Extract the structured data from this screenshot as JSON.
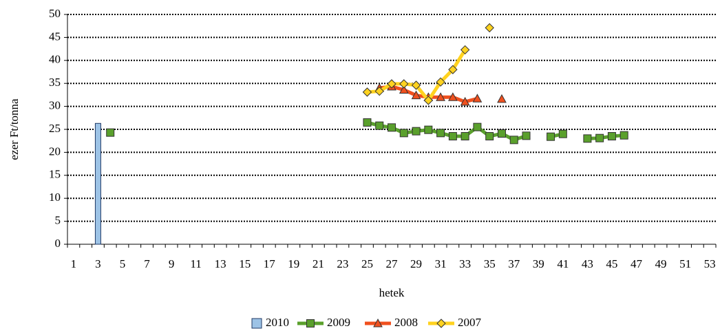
{
  "chart_data": {
    "type": "line",
    "x_label": "hetek",
    "y_label": "ezer Ft/tonna",
    "categories": [
      "1",
      null,
      "3",
      null,
      "5",
      null,
      "7",
      null,
      "9",
      null,
      "11",
      null,
      "13",
      null,
      "15",
      null,
      "17",
      null,
      "19",
      null,
      "21",
      null,
      "23",
      null,
      "25",
      null,
      "27",
      null,
      "29",
      null,
      "31",
      null,
      "33",
      null,
      "35",
      null,
      "37",
      null,
      "39",
      null,
      "41",
      null,
      "43",
      null,
      "45",
      null,
      "47",
      null,
      "49",
      null,
      "51",
      null,
      "53"
    ],
    "ylim": [
      0,
      50
    ],
    "yticks": [
      0,
      5,
      10,
      15,
      20,
      25,
      30,
      35,
      40,
      45,
      50
    ],
    "grid": true,
    "legend": "bottom",
    "series": [
      {
        "name": "2010",
        "type": "bar",
        "color": "#9dc3e6",
        "values": [
          null,
          null,
          26.3,
          null,
          null,
          null,
          null,
          null,
          null,
          null,
          null,
          null,
          null,
          null,
          null,
          null,
          null,
          null,
          null,
          null,
          null,
          null,
          null,
          null,
          null,
          null,
          null,
          null,
          null,
          null,
          null,
          null,
          null,
          null,
          null,
          null,
          null,
          null,
          null,
          null,
          null,
          null,
          null,
          null,
          null,
          null,
          null,
          null,
          null,
          null,
          null,
          null,
          null
        ]
      },
      {
        "name": "2009",
        "type": "line",
        "marker": "square",
        "color": "#5aa02c",
        "values": [
          null,
          null,
          null,
          24.3,
          null,
          null,
          null,
          null,
          null,
          null,
          null,
          null,
          null,
          null,
          null,
          null,
          null,
          null,
          null,
          null,
          null,
          null,
          null,
          null,
          26.5,
          25.8,
          25.4,
          24.2,
          24.6,
          24.9,
          24.2,
          23.5,
          23.5,
          25.5,
          23.5,
          24.1,
          22.7,
          23.6,
          null,
          23.4,
          24.0,
          null,
          23.0,
          23.1,
          23.5,
          23.7,
          null,
          null,
          null,
          null,
          null,
          null,
          null
        ]
      },
      {
        "name": "2008",
        "type": "line",
        "marker": "triangle",
        "color": "#f0501e",
        "values": [
          null,
          null,
          null,
          null,
          null,
          null,
          null,
          null,
          null,
          null,
          null,
          null,
          null,
          null,
          null,
          null,
          null,
          null,
          null,
          null,
          null,
          null,
          null,
          null,
          null,
          34.0,
          34.3,
          33.6,
          32.4,
          32.0,
          32.0,
          32.0,
          31.0,
          31.7,
          null,
          31.6,
          null,
          null,
          null,
          null,
          null,
          null,
          null,
          null,
          null,
          null,
          null,
          null,
          null,
          null,
          null,
          null,
          null
        ]
      },
      {
        "name": "2007",
        "type": "line",
        "marker": "diamond",
        "color": "#ffd21f",
        "values": [
          null,
          null,
          null,
          null,
          null,
          null,
          null,
          null,
          null,
          null,
          null,
          null,
          null,
          null,
          null,
          null,
          null,
          null,
          null,
          null,
          null,
          null,
          null,
          null,
          33.1,
          33.3,
          34.9,
          34.9,
          34.6,
          31.3,
          35.3,
          38.0,
          42.3,
          null,
          47.1,
          null,
          null,
          null,
          null,
          null,
          null,
          null,
          null,
          null,
          null,
          null,
          null,
          null,
          null,
          null,
          null,
          null,
          null
        ]
      }
    ]
  }
}
